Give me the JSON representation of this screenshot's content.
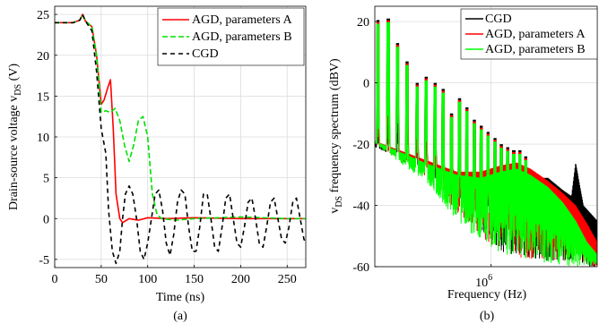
{
  "chart_data": [
    {
      "type": "line",
      "caption": "(a)",
      "xlabel": "Time (ns)",
      "ylabel_main": "Drain-source voltage v",
      "ylabel_sub": "DS",
      "ylabel_unit": " (V)",
      "xlim": [
        0,
        270
      ],
      "ylim": [
        -6,
        26
      ],
      "xticks": [
        0,
        50,
        100,
        150,
        200,
        250
      ],
      "yticks": [
        -5,
        0,
        5,
        10,
        15,
        20,
        25
      ],
      "grid": true,
      "legend_position": "top-right",
      "series": [
        {
          "name": "AGD, parameters A",
          "color": "#ff0000",
          "dash": "solid",
          "x": [
            0,
            20,
            27,
            30,
            33,
            40,
            45,
            50,
            53,
            57,
            60,
            63,
            66,
            70,
            73,
            80,
            90,
            100,
            120,
            150,
            200,
            250,
            270
          ],
          "y": [
            24,
            24,
            24.3,
            25,
            24.2,
            23.5,
            20,
            14,
            14.5,
            16,
            17,
            11,
            3,
            0,
            -0.5,
            0,
            -0.2,
            0.1,
            0,
            0.1,
            0,
            0,
            0
          ]
        },
        {
          "name": "AGD, parameters B",
          "color": "#00e000",
          "dash": "6,3",
          "x": [
            0,
            20,
            27,
            30,
            33,
            40,
            45,
            50,
            55,
            60,
            65,
            70,
            75,
            80,
            85,
            90,
            95,
            100,
            105,
            110,
            115,
            130,
            150,
            200,
            250,
            270
          ],
          "y": [
            24,
            24,
            24.3,
            25,
            24.2,
            23.5,
            20,
            13,
            13.2,
            13,
            13.5,
            12,
            9,
            7,
            9,
            12,
            12.5,
            10,
            3,
            0.5,
            0,
            -0.2,
            0,
            0.2,
            0,
            0
          ]
        },
        {
          "name": "CGD",
          "color": "#000000",
          "dash": "5,4",
          "x": [
            0,
            20,
            27,
            30,
            33,
            40,
            45,
            50,
            55,
            58,
            62,
            66,
            70,
            73,
            76,
            80,
            84,
            88,
            92,
            96,
            100,
            104,
            108,
            112,
            116,
            120,
            124,
            128,
            132,
            136,
            140,
            144,
            148,
            152,
            156,
            160,
            164,
            168,
            172,
            176,
            180,
            184,
            188,
            192,
            196,
            200,
            204,
            208,
            212,
            216,
            220,
            224,
            228,
            232,
            236,
            240,
            244,
            248,
            252,
            256,
            260,
            264,
            268,
            270
          ],
          "y": [
            24,
            24,
            24.3,
            25,
            24.2,
            23,
            18,
            11,
            8,
            1,
            -4,
            -5.5,
            -4,
            0,
            3,
            4,
            3,
            0,
            -4,
            -5,
            -3,
            0,
            3,
            3.5,
            1,
            -3,
            -4.5,
            -2,
            2,
            3.5,
            3,
            -1,
            -4,
            -4,
            -1,
            3,
            3,
            0,
            -3.5,
            -4,
            -1,
            2.5,
            3,
            0,
            -3,
            -3.5,
            -1,
            2,
            2.5,
            0,
            -3,
            -3.5,
            -1,
            2,
            2.5,
            0,
            -2.5,
            -3,
            -1,
            2,
            2.5,
            0,
            -2.5,
            -3
          ]
        }
      ]
    },
    {
      "type": "line",
      "caption": "(b)",
      "xlabel": "Frequency (Hz)",
      "ylabel_sub": "DS",
      "ylabel_rest": " frequency spectrum (dBV)",
      "xscale": "log",
      "xlim": [
        300000,
        3000000
      ],
      "ylim": [
        -60,
        25
      ],
      "xticks": [
        1000000
      ],
      "xtick_labels": [
        {
          "base": "10",
          "exp": "6"
        }
      ],
      "yticks": [
        -60,
        -40,
        -20,
        0,
        20
      ],
      "grid": true,
      "legend_position": "top-right",
      "peaks": [
        {
          "f": 310000,
          "a": 20.5
        },
        {
          "f": 345000,
          "a": 21
        },
        {
          "f": 380000,
          "a": 13
        },
        {
          "f": 420000,
          "a": 7
        },
        {
          "f": 465000,
          "a": 0
        },
        {
          "f": 510000,
          "a": 2
        },
        {
          "f": 560000,
          "a": 0
        },
        {
          "f": 610000,
          "a": -2
        },
        {
          "f": 665000,
          "a": -10
        },
        {
          "f": 720000,
          "a": -5
        },
        {
          "f": 780000,
          "a": -8
        },
        {
          "f": 840000,
          "a": -12
        },
        {
          "f": 905000,
          "a": -14
        },
        {
          "f": 970000,
          "a": -16
        },
        {
          "f": 1040000,
          "a": -18
        },
        {
          "f": 1110000,
          "a": -20
        },
        {
          "f": 1185000,
          "a": -21
        },
        {
          "f": 1265000,
          "a": -22
        },
        {
          "f": 1345000,
          "a": -22
        },
        {
          "f": 1430000,
          "a": -24
        }
      ],
      "series": [
        {
          "name": "CGD",
          "color": "#000000",
          "env_f": [
            300000,
            500000,
            700000,
            900000,
            1100000,
            1300000,
            1500000,
            1800000,
            2100000,
            2300000,
            2400000,
            2600000,
            3000000
          ],
          "env_top": [
            -20,
            -26,
            -30,
            -32,
            -30,
            -29,
            -31,
            -31,
            -35,
            -37,
            -26,
            -40,
            -45
          ],
          "env_bot": [
            -21,
            -28,
            -38,
            -48,
            -55,
            -58,
            -58,
            -58,
            -58,
            -59,
            -59,
            -60,
            -60
          ]
        },
        {
          "name": "AGD, parameters A",
          "color": "#ff0000",
          "env_f": [
            300000,
            500000,
            700000,
            900000,
            1100000,
            1300000,
            1500000,
            1800000,
            2100000,
            2400000,
            2700000,
            3000000
          ],
          "env_top": [
            -19,
            -25,
            -29,
            -29,
            -27,
            -26,
            -28,
            -32,
            -36,
            -40,
            -46,
            -52
          ],
          "env_bot": [
            -20,
            -30,
            -42,
            -50,
            -55,
            -57,
            -58,
            -58,
            -58,
            -59,
            -60,
            -60
          ]
        },
        {
          "name": "AGD, parameters B",
          "color": "#00ff00",
          "env_f": [
            300000,
            500000,
            700000,
            900000,
            1100000,
            1300000,
            1500000,
            1800000,
            2100000,
            2400000,
            2700000,
            3000000
          ],
          "env_top": [
            -19,
            -26,
            -30,
            -31,
            -29,
            -28,
            -30,
            -34,
            -39,
            -45,
            -52,
            -56
          ],
          "env_bot": [
            -20,
            -32,
            -45,
            -52,
            -56,
            -57,
            -58,
            -59,
            -60,
            -60,
            -60,
            -60
          ]
        }
      ]
    }
  ]
}
